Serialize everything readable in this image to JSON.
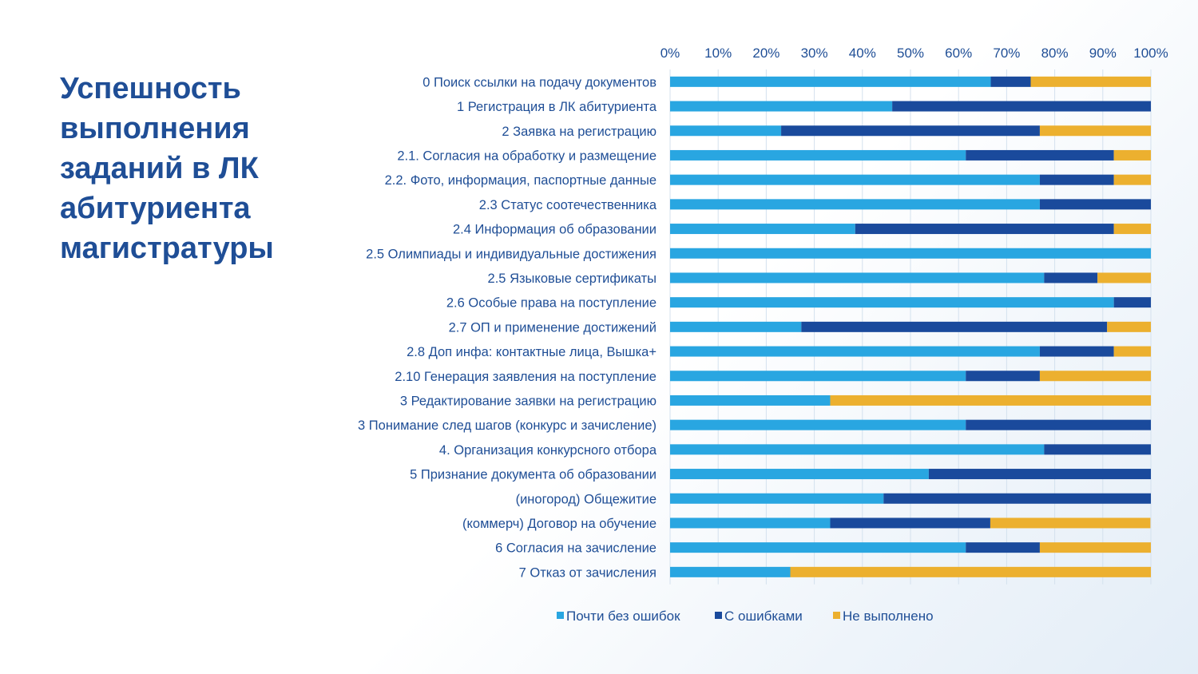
{
  "page": {
    "title_lines": [
      "Успешность",
      "выполнения",
      "заданий в ЛК",
      "абитуриента",
      "магистратуры"
    ]
  },
  "colors": {
    "almost_no_errors": "#29a6e1",
    "with_errors": "#1a4a9c",
    "not_done": "#ecb02f",
    "grid": "#d4e1ee",
    "text": "#1f4e96"
  },
  "chart_data": {
    "type": "bar",
    "orientation": "horizontal",
    "stacked": true,
    "percent": true,
    "xlim": [
      0,
      100
    ],
    "ticks": [
      "0%",
      "10%",
      "20%",
      "30%",
      "40%",
      "50%",
      "60%",
      "70%",
      "80%",
      "90%",
      "100%"
    ],
    "grid": true,
    "legend_position": "bottom",
    "categories": [
      "0 Поиск ссылки на подачу документов",
      "1 Регистрация в ЛК абитуриента",
      "2 Заявка на регистрацию",
      "2.1. Согласия на обработку и размещение",
      "2.2. Фото, информация, паспортные данные",
      "2.3 Статус соотечественника",
      "2.4 Информация об образовании",
      "2.5 Олимпиады и индивидуальные достижения",
      "2.5 Языковые сертификаты",
      "2.6 Особые права на поступление",
      "2.7 ОП и применение достижений",
      "2.8 Доп инфа: контактные лица, Вышка+",
      "2.10 Генерация заявления на поступление",
      "3 Редактирование заявки на регистрацию",
      "3 Понимание след шагов (конкурс и зачисление)",
      "4. Организация конкурсного отбора",
      "5 Признание документа об образовании",
      "(иногород) Общежитие",
      "(коммерч) Договор на обучение",
      "6 Согласия на зачисление",
      "7 Отказ от зачисления"
    ],
    "series": [
      {
        "name": "Почти без ошибок",
        "values": [
          66.7,
          46.2,
          23.1,
          61.5,
          76.9,
          76.9,
          38.5,
          100,
          77.8,
          92.3,
          27.3,
          76.9,
          61.5,
          33.3,
          61.5,
          77.8,
          53.8,
          44.4,
          33.3,
          61.5,
          25.0
        ]
      },
      {
        "name": "С ошибками",
        "values": [
          8.3,
          53.8,
          53.8,
          30.8,
          15.4,
          23.1,
          53.8,
          0,
          11.1,
          7.7,
          63.6,
          15.4,
          15.4,
          0,
          38.5,
          22.2,
          46.2,
          55.6,
          33.3,
          15.4,
          0
        ]
      },
      {
        "name": "Не выполнено",
        "values": [
          25.0,
          0,
          23.1,
          7.7,
          7.7,
          0,
          7.7,
          0,
          11.1,
          0,
          9.1,
          7.7,
          23.1,
          66.7,
          0,
          0,
          0,
          0,
          33.3,
          23.1,
          75.0
        ]
      }
    ]
  }
}
